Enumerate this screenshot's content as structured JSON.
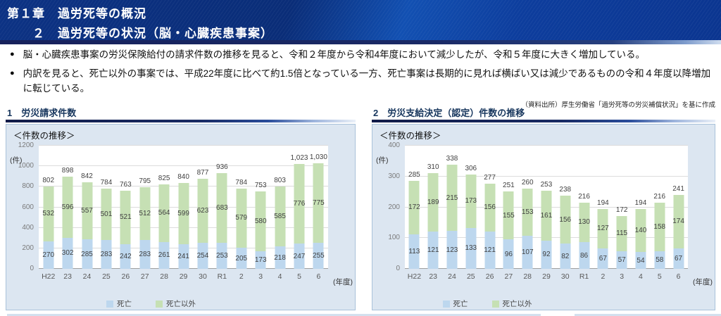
{
  "header": {
    "line1": "第１章　過労死等の概況",
    "line2": "２　過労死等の状況（脳・心臓疾患事案）"
  },
  "bullets": [
    {
      "marker": "●",
      "text": "脳・心臓疾患事案の労災保険給付の請求件数の推移を見ると、令和２年度から令和4年度において減少したが、令和５年度に大きく増加している。"
    },
    {
      "marker": "●",
      "text": "内訳を見ると、死亡以外の事案では、平成22年度に比べて約1.5倍となっている一方、死亡事案は長期的に見れば横ばい又は減少であるものの令和４年度以降増加に転じている。"
    }
  ],
  "source_note": "（資料出所）厚生労働省「過労死等の労災補償状況」を基に作成",
  "colors": {
    "death_bar": "#bdd7ee",
    "non_death_bar": "#c6e0b4",
    "panel_background": "#dce6f1",
    "header_blue": "#0d3d9d",
    "title_navy": "#17365d"
  },
  "chart_data": [
    {
      "type": "bar",
      "stacked": true,
      "section_title": "1　労災請求件数",
      "title": "＜件数の推移＞",
      "categories": [
        "H22",
        "23",
        "24",
        "25",
        "26",
        "27",
        "28",
        "29",
        "30",
        "R1",
        "2",
        "3",
        "4",
        "5",
        "6"
      ],
      "series": [
        {
          "name": "死亡",
          "color": "#bdd7ee",
          "values": [
            270,
            302,
            285,
            283,
            242,
            283,
            261,
            241,
            254,
            253,
            205,
            173,
            218,
            247,
            255
          ]
        },
        {
          "name": "死亡以外",
          "color": "#c6e0b4",
          "values": [
            532,
            596,
            557,
            501,
            521,
            512,
            564,
            599,
            623,
            683,
            579,
            580,
            585,
            776,
            775
          ]
        }
      ],
      "totals": [
        "802",
        "898",
        "842",
        "784",
        "763",
        "795",
        "825",
        "840",
        "877",
        "936",
        "784",
        "753",
        "803",
        "1,023",
        "1,030"
      ],
      "xlabel": "(年度)",
      "ylabel": "(件)",
      "ylim": [
        0,
        1200
      ],
      "ytick_step": 200,
      "grid": true,
      "legend_position": "bottom"
    },
    {
      "type": "bar",
      "stacked": true,
      "section_title": "2　労災支給決定（認定）件数の推移",
      "title": "＜件数の推移＞",
      "categories": [
        "H22",
        "23",
        "24",
        "25",
        "26",
        "27",
        "28",
        "29",
        "30",
        "R1",
        "2",
        "3",
        "4",
        "5",
        "6"
      ],
      "series": [
        {
          "name": "死亡",
          "color": "#bdd7ee",
          "values": [
            113,
            121,
            123,
            133,
            121,
            96,
            107,
            92,
            82,
            86,
            67,
            57,
            54,
            58,
            67
          ]
        },
        {
          "name": "死亡以外",
          "color": "#c6e0b4",
          "values": [
            172,
            189,
            215,
            173,
            156,
            155,
            153,
            161,
            156,
            130,
            127,
            115,
            140,
            158,
            174
          ]
        }
      ],
      "totals": [
        "285",
        "310",
        "338",
        "306",
        "277",
        "251",
        "260",
        "253",
        "238",
        "216",
        "194",
        "172",
        "194",
        "216",
        "241"
      ],
      "xlabel": "(年度)",
      "ylabel": "(件)",
      "ylim": [
        0,
        400
      ],
      "ytick_step": 100,
      "grid": true,
      "legend_position": "bottom"
    }
  ]
}
